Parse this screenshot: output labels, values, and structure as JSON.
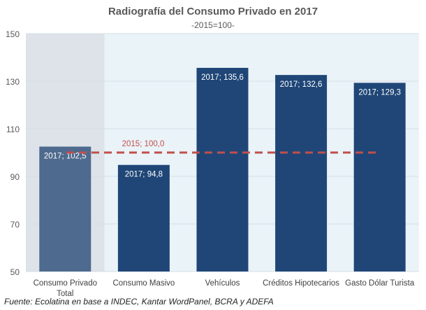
{
  "chart_data": {
    "type": "bar",
    "title": "Radiografía del Consumo Privado en 2017",
    "subtitle": "-2015=100-",
    "categories": [
      "Consumo Privado Total",
      "Consumo Masivo",
      "Vehículos",
      "Créditos Hipotecarios",
      "Gasto Dólar Turista"
    ],
    "category_lines": [
      [
        "Consumo Privado",
        "Total"
      ],
      [
        "Consumo Masivo"
      ],
      [
        "Vehículos"
      ],
      [
        "Créditos Hipotecarios"
      ],
      [
        "Gasto Dólar Turista"
      ]
    ],
    "values": [
      102.5,
      94.8,
      135.6,
      132.6,
      129.3
    ],
    "data_labels": [
      "2017; 102,5",
      "2017; 94,8",
      "2017; 135,6",
      "2017; 132,6",
      "2017; 129,3"
    ],
    "reference_line": {
      "value": 100.0,
      "label": "2015; 100,0",
      "style": "dashed",
      "color": "#c0504d"
    },
    "ylim": [
      50,
      150
    ],
    "yticks": [
      50,
      70,
      90,
      110,
      130,
      150
    ],
    "grid": true,
    "highlighted_category": 0,
    "colors": {
      "bar": "#1f4677",
      "highlight_bar": "#4e6a8e",
      "plot_bg": "#eaf3f8",
      "highlight_bg": "#dde3e8"
    },
    "xlabel": "",
    "ylabel": ""
  },
  "source": "Fuente: Ecolatina en base a INDEC, Kantar WordPanel, BCRA y ADEFA"
}
